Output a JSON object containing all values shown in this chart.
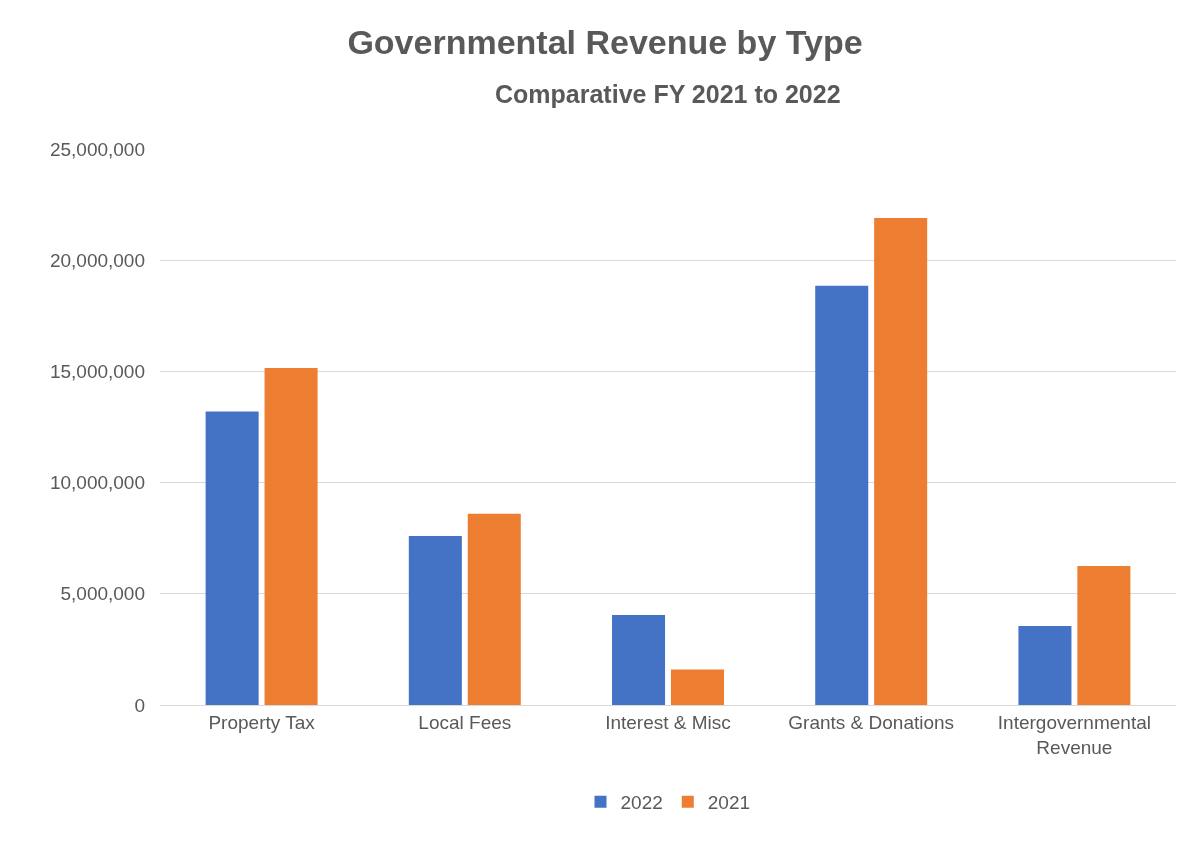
{
  "chart_data": {
    "type": "bar",
    "title": "Governmental Revenue by Type",
    "subtitle": "Comparative FY 2021 to 2022",
    "categories": [
      "Property Tax",
      "Local Fees",
      "Interest & Misc",
      "Grants & Donations",
      "Intergovernmental Revenue"
    ],
    "series": [
      {
        "name": "2022",
        "color": "#4472c4",
        "values": [
          13200000,
          7600000,
          4050000,
          18850000,
          3550000
        ]
      },
      {
        "name": "2021",
        "color": "#ed7d31",
        "values": [
          15150000,
          8600000,
          1600000,
          21900000,
          6250000
        ]
      }
    ],
    "ylim": [
      0,
      25000000
    ],
    "yticks": [
      {
        "value": 0,
        "label": "0"
      },
      {
        "value": 5000000,
        "label": "5,000,000"
      },
      {
        "value": 10000000,
        "label": "10,000,000"
      },
      {
        "value": 15000000,
        "label": "15,000,000"
      },
      {
        "value": 20000000,
        "label": "20,000,000"
      },
      {
        "value": 25000000,
        "label": "25,000,000"
      }
    ],
    "grid": "y",
    "legend": "bottom"
  }
}
